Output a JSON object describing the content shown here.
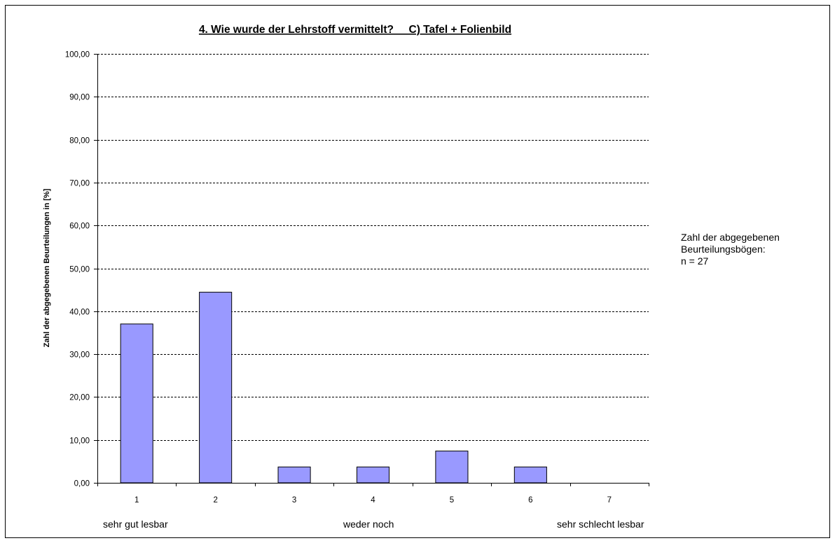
{
  "chart_data": {
    "type": "bar",
    "title": "4. Wie wurde der Lehrstoff vermittelt?     C) Tafel + Folienbild",
    "ylabel": "Zahl der abgegebenen Beurteilungen in [%]",
    "xlabel": "",
    "categories": [
      "1",
      "2",
      "3",
      "4",
      "5",
      "6",
      "7"
    ],
    "values": [
      37.04,
      44.44,
      3.7,
      3.7,
      7.41,
      3.7,
      0.0
    ],
    "ylim": [
      0,
      100
    ],
    "ytick_step": 10,
    "ytick_labels": [
      "0,00",
      "10,00",
      "20,00",
      "30,00",
      "40,00",
      "50,00",
      "60,00",
      "70,00",
      "80,00",
      "90,00",
      "100,00"
    ],
    "grid": true,
    "grid_style": "dashed",
    "bar_color": "#9999FF",
    "bar_edge_color": "#000000",
    "scale_labels": {
      "left": "sehr gut lesbar",
      "middle": "weder noch",
      "right": "sehr schlecht lesbar"
    },
    "annotation": {
      "line1": "Zahl der abgegebenen",
      "line2": "Beurteilungsbögen:",
      "line3": "n = 27"
    }
  }
}
